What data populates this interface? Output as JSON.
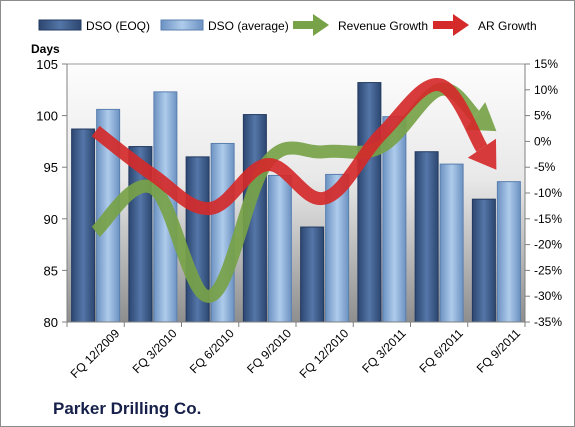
{
  "chart_data": {
    "type": "bar",
    "title": "",
    "company": "Parker Drilling Co.",
    "categories": [
      "FQ 12/2009",
      "FQ 3/2010",
      "FQ 6/2010",
      "FQ 9/2010",
      "FQ 12/2010",
      "FQ 3/2011",
      "FQ 6/2011",
      "FQ 9/2011"
    ],
    "ylabel": "Days",
    "ylim": [
      80,
      105
    ],
    "yticks": [
      80,
      85,
      90,
      95,
      100,
      105
    ],
    "y2lim": [
      -35,
      15
    ],
    "y2ticks": [
      "15%",
      "10%",
      "5%",
      "0%",
      "-5%",
      "-10%",
      "-15%",
      "-20%",
      "-25%",
      "-30%",
      "-35%"
    ],
    "y2tick_values": [
      15,
      10,
      5,
      0,
      -5,
      -10,
      -15,
      -20,
      -25,
      -30,
      -35
    ],
    "legend_position": "top",
    "grid": false,
    "series": [
      {
        "name": "DSO (EOQ)",
        "type": "bar",
        "color": "#3f5f8f",
        "values": [
          98.7,
          97.0,
          96.0,
          100.1,
          89.2,
          103.2,
          96.5,
          91.9
        ]
      },
      {
        "name": "DSO (average)",
        "type": "bar",
        "color": "#8eb1d8",
        "values": [
          100.6,
          102.3,
          97.3,
          94.2,
          94.3,
          99.9,
          95.3,
          93.6
        ]
      },
      {
        "name": "Revenue Growth",
        "type": "line",
        "axis": "right",
        "color": "#77a248",
        "values": [
          -17.5,
          -9,
          -30,
          -4,
          -2,
          -1,
          10,
          2
        ]
      },
      {
        "name": "AR Growth",
        "type": "line",
        "axis": "right",
        "color": "#d42a2a",
        "values": [
          2,
          -6.5,
          -13,
          -4.5,
          -11,
          1.5,
          11,
          -5.5
        ]
      }
    ]
  }
}
